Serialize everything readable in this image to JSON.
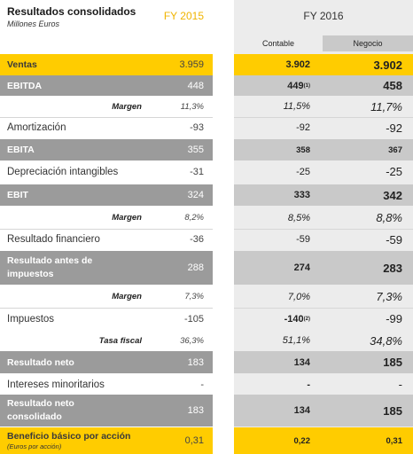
{
  "header": {
    "title": "Resultados consolidados",
    "subtitle": "Millones Euros",
    "fy2015": "FY 2015",
    "fy2016": "FY 2016",
    "contable": "Contable",
    "negocio": "Negocio"
  },
  "rows": [
    {
      "label": "Ventas",
      "fy15": "3.959",
      "contable": "3.902",
      "negocio": "3.902"
    },
    {
      "label": "EBITDA",
      "fy15": "448",
      "contable": "449",
      "contable_note": "(1)",
      "negocio": "458"
    },
    {
      "label": "Margen",
      "fy15": "11,3%",
      "contable": "11,5%",
      "negocio": "11,7%"
    },
    {
      "label": "Amortización",
      "fy15": "-93",
      "contable": "-92",
      "negocio": "-92"
    },
    {
      "label": "EBITA",
      "fy15": "355",
      "contable": "358",
      "negocio": "367"
    },
    {
      "label": "Depreciación intangibles",
      "fy15": "-31",
      "contable": "-25",
      "negocio": "-25"
    },
    {
      "label": "EBIT",
      "fy15": "324",
      "contable": "333",
      "negocio": "342"
    },
    {
      "label": "Margen",
      "fy15": "8,2%",
      "contable": "8,5%",
      "negocio": "8,8%"
    },
    {
      "label": "Resultado financiero",
      "fy15": "-36",
      "contable": "-59",
      "negocio": "-59"
    },
    {
      "label": "Resultado antes de impuestos",
      "fy15": "288",
      "contable": "274",
      "negocio": "283"
    },
    {
      "label": "Margen",
      "fy15": "7,3%",
      "contable": "7,0%",
      "negocio": "7,3%"
    },
    {
      "label": "Impuestos",
      "fy15": "-105",
      "contable": "-140",
      "contable_note": "(2)",
      "negocio": "-99"
    },
    {
      "label": "Tasa fiscal",
      "fy15": "36,3%",
      "contable": "51,1%",
      "negocio": "34,8%"
    },
    {
      "label": "Resultado neto",
      "fy15": "183",
      "contable": "134",
      "negocio": "185"
    },
    {
      "label": "Intereses minoritarios",
      "fy15": "-",
      "contable": "-",
      "negocio": "-"
    },
    {
      "label": "Resultado neto consolidado",
      "fy15": "183",
      "contable": "134",
      "negocio": "185"
    },
    {
      "label": "Beneficio básico por acción",
      "sublabel": "(Euros por acción)",
      "fy15": "0,31",
      "contable": "0,22",
      "negocio": "0,31"
    }
  ],
  "colors": {
    "yellow": "#ffcc00",
    "gray": "#9b9b9b",
    "light_gray": "#c9c9c9",
    "fy2015_text": "#f0b400"
  }
}
